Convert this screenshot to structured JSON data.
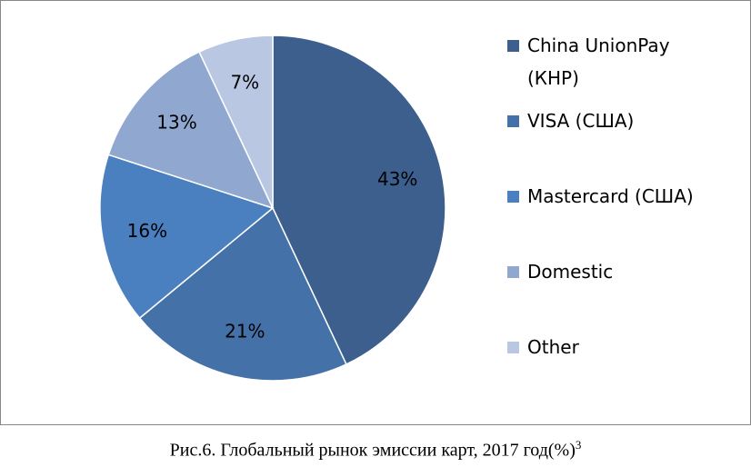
{
  "chart_data": {
    "type": "pie",
    "categories": [
      "China UnionPay (КНР)",
      "VISA (США)",
      "Mastercard (США)",
      "Domestic",
      "Other"
    ],
    "values": [
      43,
      21,
      16,
      13,
      7
    ],
    "value_labels": [
      "43%",
      "21%",
      "16%",
      "13%",
      "7%"
    ],
    "colors": [
      "#3d5f8e",
      "#4571a9",
      "#4b80c0",
      "#90a8cf",
      "#bac7e2"
    ],
    "legend": "right",
    "caption": "Рис.6. Глобальный рынок эмиссии карт, 2017 год(%)",
    "caption_note": "3"
  }
}
